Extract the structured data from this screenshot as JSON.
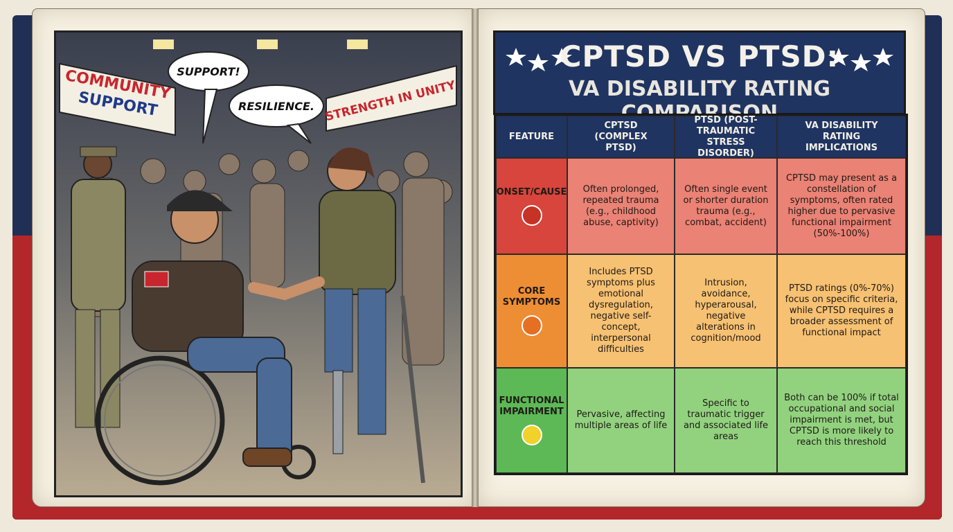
{
  "illustration": {
    "banner_left": [
      "COMMUNITY",
      "SUPPORT"
    ],
    "banner_right": "STRENGTH IN UNITY",
    "speech_bubbles": [
      "SUPPORT!",
      "RESILIENCE."
    ]
  },
  "header": {
    "title": "CPTSD VS PTSD:",
    "subtitle": "VA DISABILITY RATING COMPARISON"
  },
  "table": {
    "columns": [
      "FEATURE",
      "CPTSD (COMPLEX PTSD)",
      "PTSD (POST-TRAUMATIC STRESS DISORDER)",
      "VA DISABILITY RATING IMPLICATIONS"
    ],
    "rows": [
      [
        "ONSET/CAUSE",
        "Often prolonged, repeated trauma (e.g., childhood abuse, captivity)",
        "Often single event or shorter duration trauma (e.g., combat, accident)",
        "CPTSD may present as a constellation of symptoms, often rated higher due to pervasive functional impairment (50%-100%)"
      ],
      [
        "CORE SYMPTOMS",
        "Includes PTSD symptoms plus emotional dysregulation, negative self-concept, interpersonal difficulties",
        "Intrusion, avoidance, hyperarousal, negative alterations in cognition/mood",
        "PTSD ratings (0%-70%) focus on specific criteria, while CPTSD requires a broader assessment of functional impact"
      ],
      [
        "FUNCTIONAL IMPAIRMENT",
        "Pervasive, affecting multiple areas of life",
        "Specific to traumatic trigger and associated life areas",
        "Both can be 100% if total occupational and social impairment is met, but CPTSD is more likely to reach this threshold"
      ]
    ]
  }
}
